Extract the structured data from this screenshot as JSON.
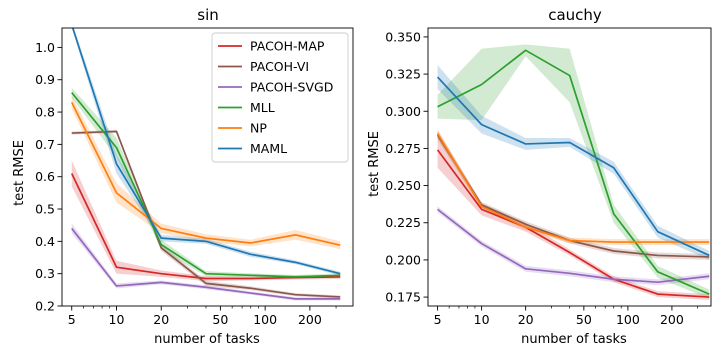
{
  "chart_data": [
    {
      "type": "line",
      "title": "sin",
      "xlabel": "number of tasks",
      "ylabel": "test RMSE",
      "xscale": "log",
      "xlim": [
        4.3,
        390
      ],
      "ylim": [
        0.2,
        1.06
      ],
      "xticks": [
        5,
        10,
        20,
        50,
        100,
        200
      ],
      "xtick_labels": [
        "5",
        "10",
        "20",
        "50",
        "100",
        "200"
      ],
      "yticks": [
        0.2,
        0.3,
        0.4,
        0.5,
        0.6,
        0.7,
        0.8,
        0.9,
        1.0
      ],
      "ytick_labels": [
        "0.2",
        "0.3",
        "0.4",
        "0.5",
        "0.6",
        "0.7",
        "0.8",
        "0.9",
        "1.0"
      ],
      "legend": "top-right",
      "grid": false,
      "x": [
        5,
        10,
        20,
        40,
        80,
        160,
        320
      ],
      "series": [
        {
          "name": "PACOH-MAP",
          "color": "#d62728",
          "values": [
            0.61,
            0.32,
            0.3,
            0.285,
            0.285,
            0.288,
            0.29
          ],
          "band": [
            0.04,
            0.02,
            0.01,
            0.008,
            0.006,
            0.006,
            0.006
          ]
        },
        {
          "name": "PACOH-VI",
          "color": "#8c564b",
          "values": [
            0.735,
            0.74,
            0.38,
            0.27,
            0.255,
            0.235,
            0.228
          ],
          "band": [
            0.005,
            0.005,
            0.01,
            0.008,
            0.006,
            0.005,
            0.005
          ]
        },
        {
          "name": "PACOH-SVGD",
          "color": "#9467bd",
          "values": [
            0.44,
            0.262,
            0.273,
            0.258,
            0.24,
            0.222,
            0.222
          ],
          "band": [
            0.015,
            0.008,
            0.006,
            0.006,
            0.005,
            0.005,
            0.005
          ]
        },
        {
          "name": "MLL",
          "color": "#2ca02c",
          "values": [
            0.86,
            0.69,
            0.39,
            0.3,
            0.295,
            0.29,
            0.295
          ],
          "band": [
            0.015,
            0.03,
            0.015,
            0.008,
            0.006,
            0.006,
            0.006
          ]
        },
        {
          "name": "NP",
          "color": "#ff7f0e",
          "values": [
            0.83,
            0.55,
            0.44,
            0.41,
            0.395,
            0.42,
            0.388
          ],
          "band": [
            0.02,
            0.03,
            0.015,
            0.012,
            0.01,
            0.015,
            0.012
          ]
        },
        {
          "name": "MAML",
          "color": "#1f77b4",
          "values": [
            1.07,
            0.64,
            0.41,
            0.4,
            0.36,
            0.335,
            0.3
          ],
          "band": [
            0.01,
            0.03,
            0.01,
            0.008,
            0.008,
            0.006,
            0.006
          ]
        }
      ]
    },
    {
      "type": "line",
      "title": "cauchy",
      "xlabel": "number of tasks",
      "ylabel": "test RMSE",
      "xscale": "log",
      "xlim": [
        4.3,
        370
      ],
      "ylim": [
        0.169,
        0.356
      ],
      "xticks": [
        5,
        10,
        20,
        50,
        100,
        200
      ],
      "xtick_labels": [
        "5",
        "10",
        "20",
        "50",
        "100",
        "200"
      ],
      "yticks": [
        0.175,
        0.2,
        0.225,
        0.25,
        0.275,
        0.3,
        0.325,
        0.35
      ],
      "ytick_labels": [
        "0.175",
        "0.200",
        "0.225",
        "0.250",
        "0.275",
        "0.300",
        "0.325",
        "0.350"
      ],
      "grid": false,
      "x": [
        5,
        10,
        20,
        40,
        80,
        160,
        360
      ],
      "series": [
        {
          "name": "PACOH-MAP",
          "color": "#d62728",
          "values": [
            0.274,
            0.234,
            0.222,
            0.205,
            0.187,
            0.177,
            0.175
          ],
          "band": [
            0.012,
            0.004,
            0.003,
            0.002,
            0.002,
            0.002,
            0.002
          ]
        },
        {
          "name": "PACOH-VI",
          "color": "#8c564b",
          "values": [
            0.284,
            0.237,
            0.224,
            0.213,
            0.206,
            0.203,
            0.202
          ],
          "band": [
            0.003,
            0.002,
            0.002,
            0.002,
            0.002,
            0.002,
            0.002
          ]
        },
        {
          "name": "PACOH-SVGD",
          "color": "#9467bd",
          "values": [
            0.234,
            0.211,
            0.194,
            0.191,
            0.187,
            0.185,
            0.189
          ],
          "band": [
            0.002,
            0.002,
            0.002,
            0.002,
            0.002,
            0.002,
            0.002
          ]
        },
        {
          "name": "MLL",
          "color": "#2ca02c",
          "values": [
            0.303,
            0.318,
            0.341,
            0.324,
            0.231,
            0.192,
            0.177
          ],
          "band": [
            0.008,
            0.024,
            0.004,
            0.018,
            0.006,
            0.004,
            0.003
          ]
        },
        {
          "name": "NP",
          "color": "#ff7f0e",
          "values": [
            0.285,
            0.236,
            0.222,
            0.213,
            0.212,
            0.212,
            0.212
          ],
          "band": [
            0.003,
            0.002,
            0.002,
            0.002,
            0.002,
            0.002,
            0.002
          ]
        },
        {
          "name": "MAML",
          "color": "#1f77b4",
          "values": [
            0.323,
            0.291,
            0.278,
            0.279,
            0.262,
            0.219,
            0.203
          ],
          "band": [
            0.008,
            0.006,
            0.004,
            0.003,
            0.004,
            0.004,
            0.003
          ]
        }
      ]
    }
  ]
}
